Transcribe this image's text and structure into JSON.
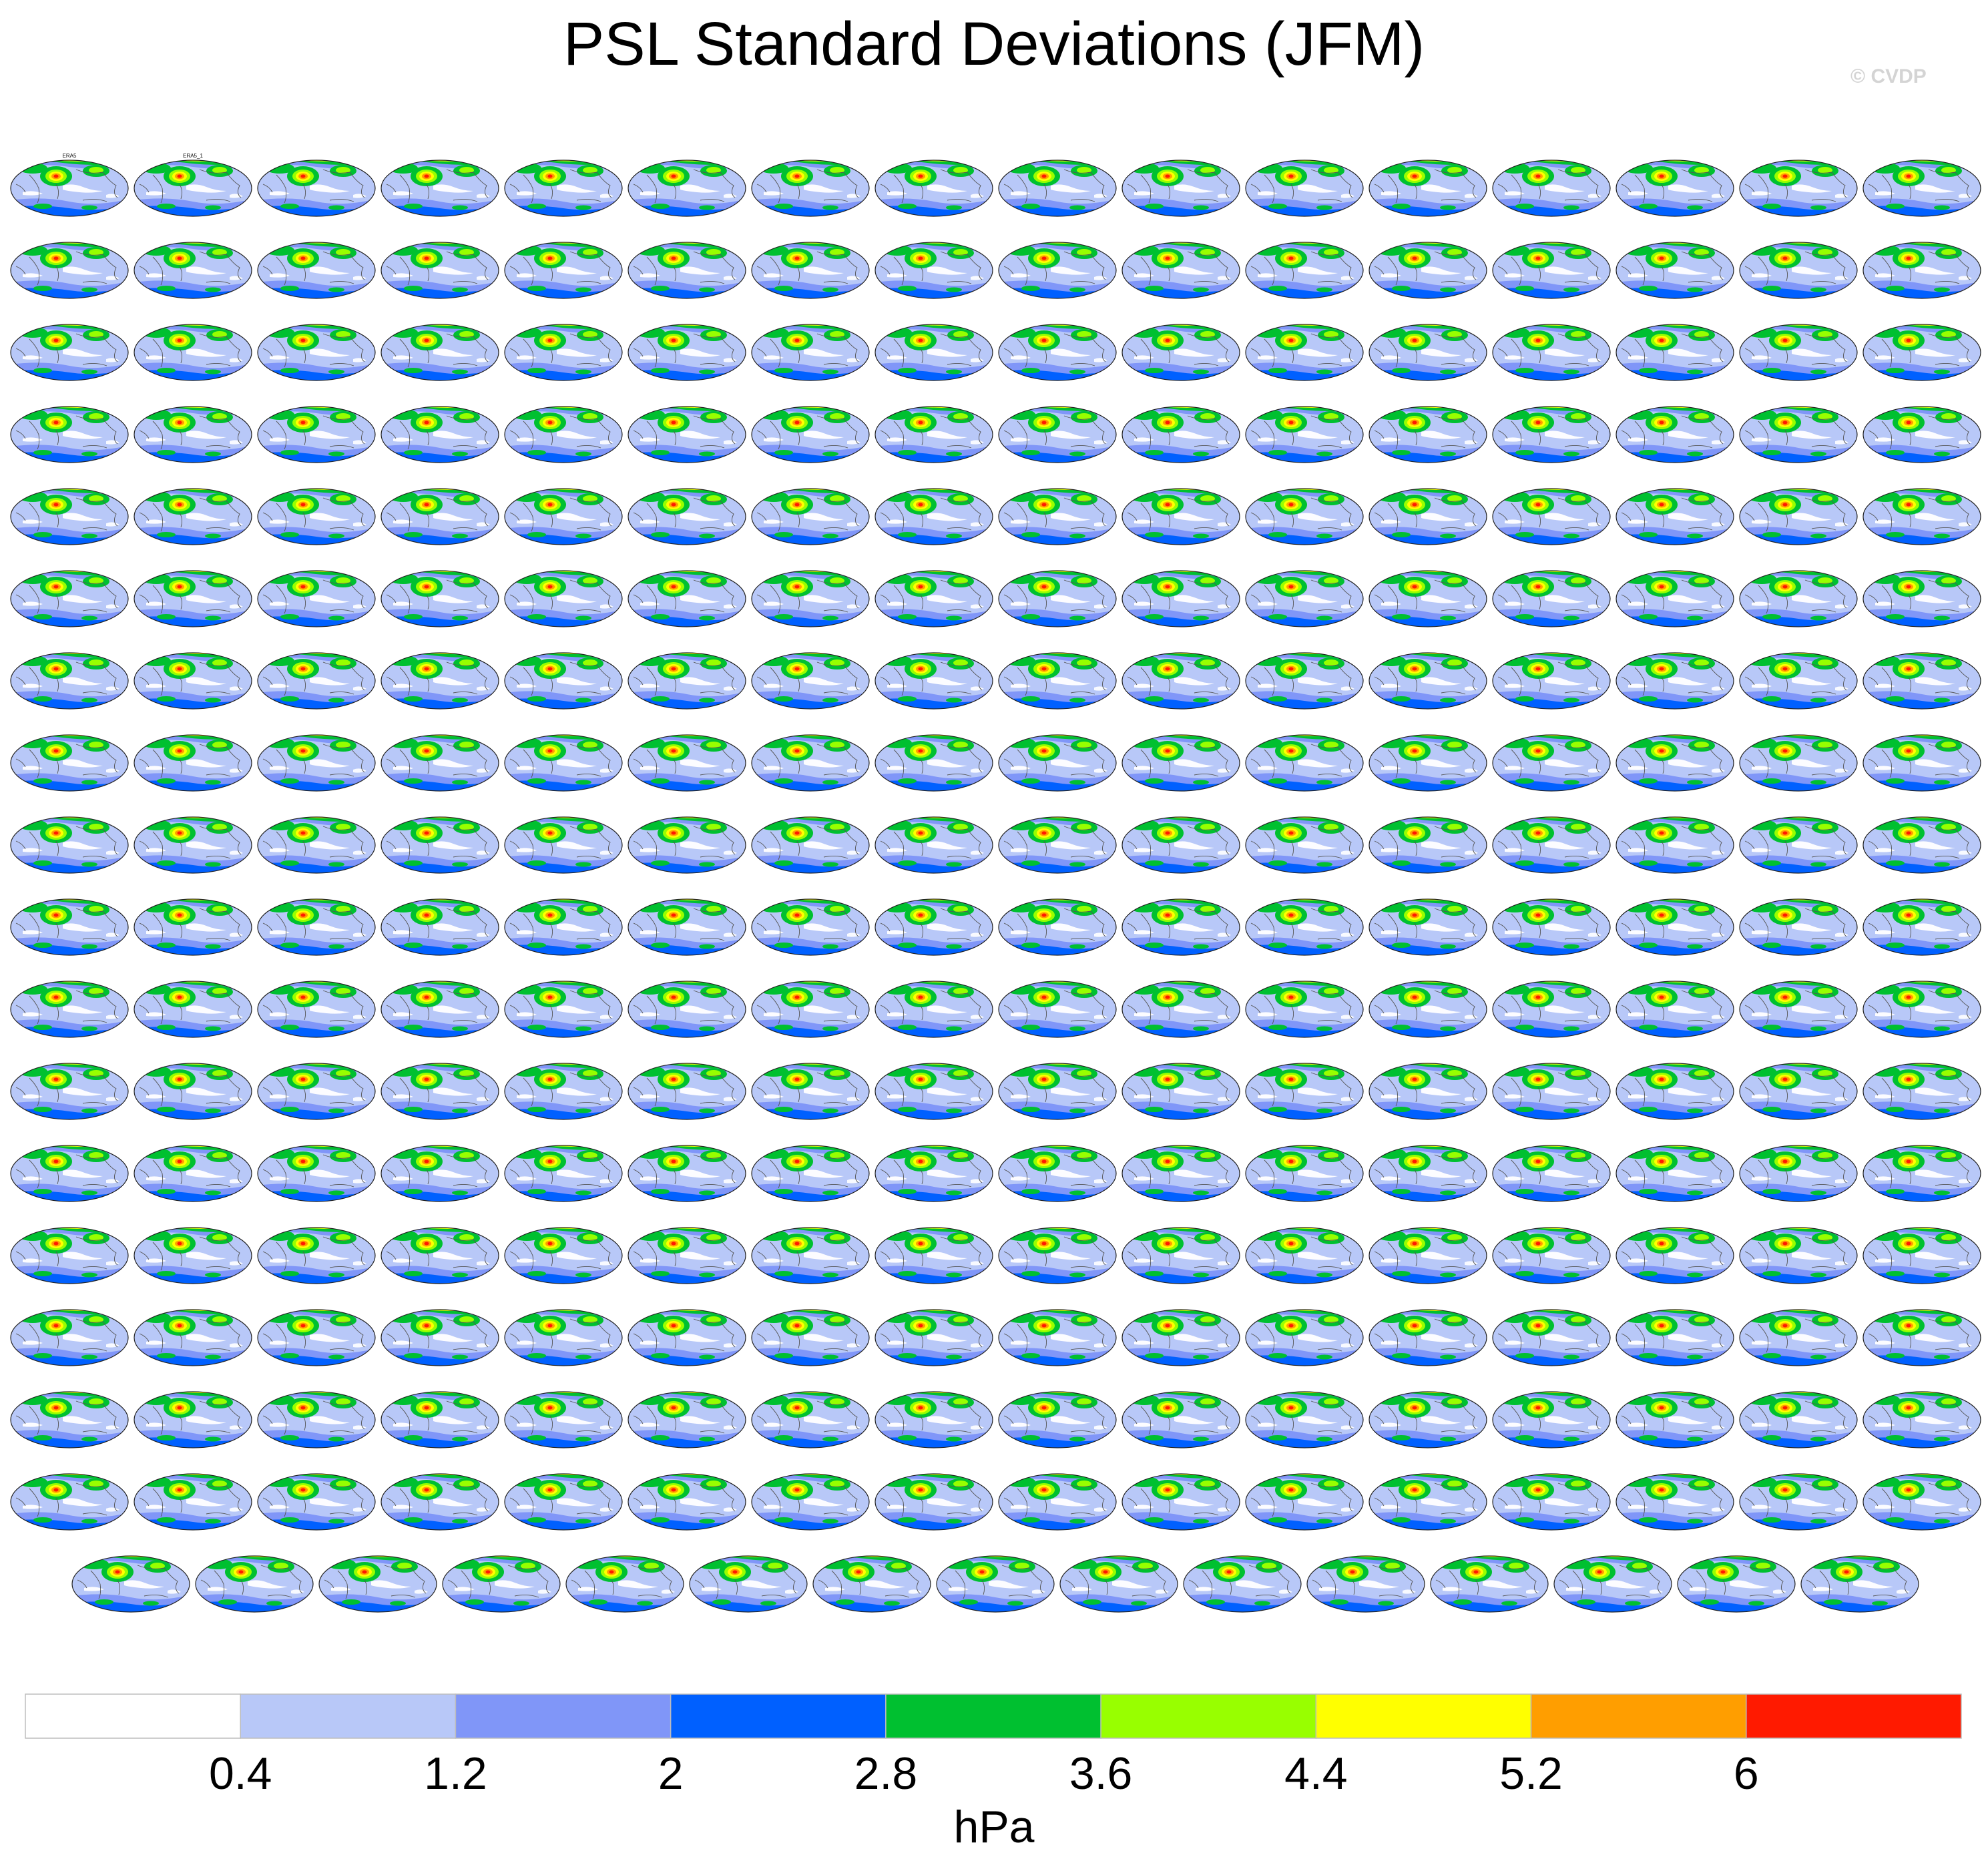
{
  "title": "PSL Standard Deviations (JFM)",
  "watermark": "© CVDP",
  "colorbar": {
    "unit": "hPa",
    "levels": [
      "0.4",
      "1.2",
      "2",
      "2.8",
      "3.6",
      "4.4",
      "5.2",
      "6"
    ],
    "colors": [
      "#ffffff",
      "#b8c8f8",
      "#8096f8",
      "#0060ff",
      "#00c030",
      "#98ff00",
      "#ffff00",
      "#ff9e00",
      "#ff1a00"
    ]
  },
  "grid": {
    "rows_full": 17,
    "cols_full": 16,
    "last_row_count": 15
  },
  "panels_labeled": [
    {
      "label": "ERA5"
    },
    {
      "label": "ERA5_1"
    }
  ]
}
